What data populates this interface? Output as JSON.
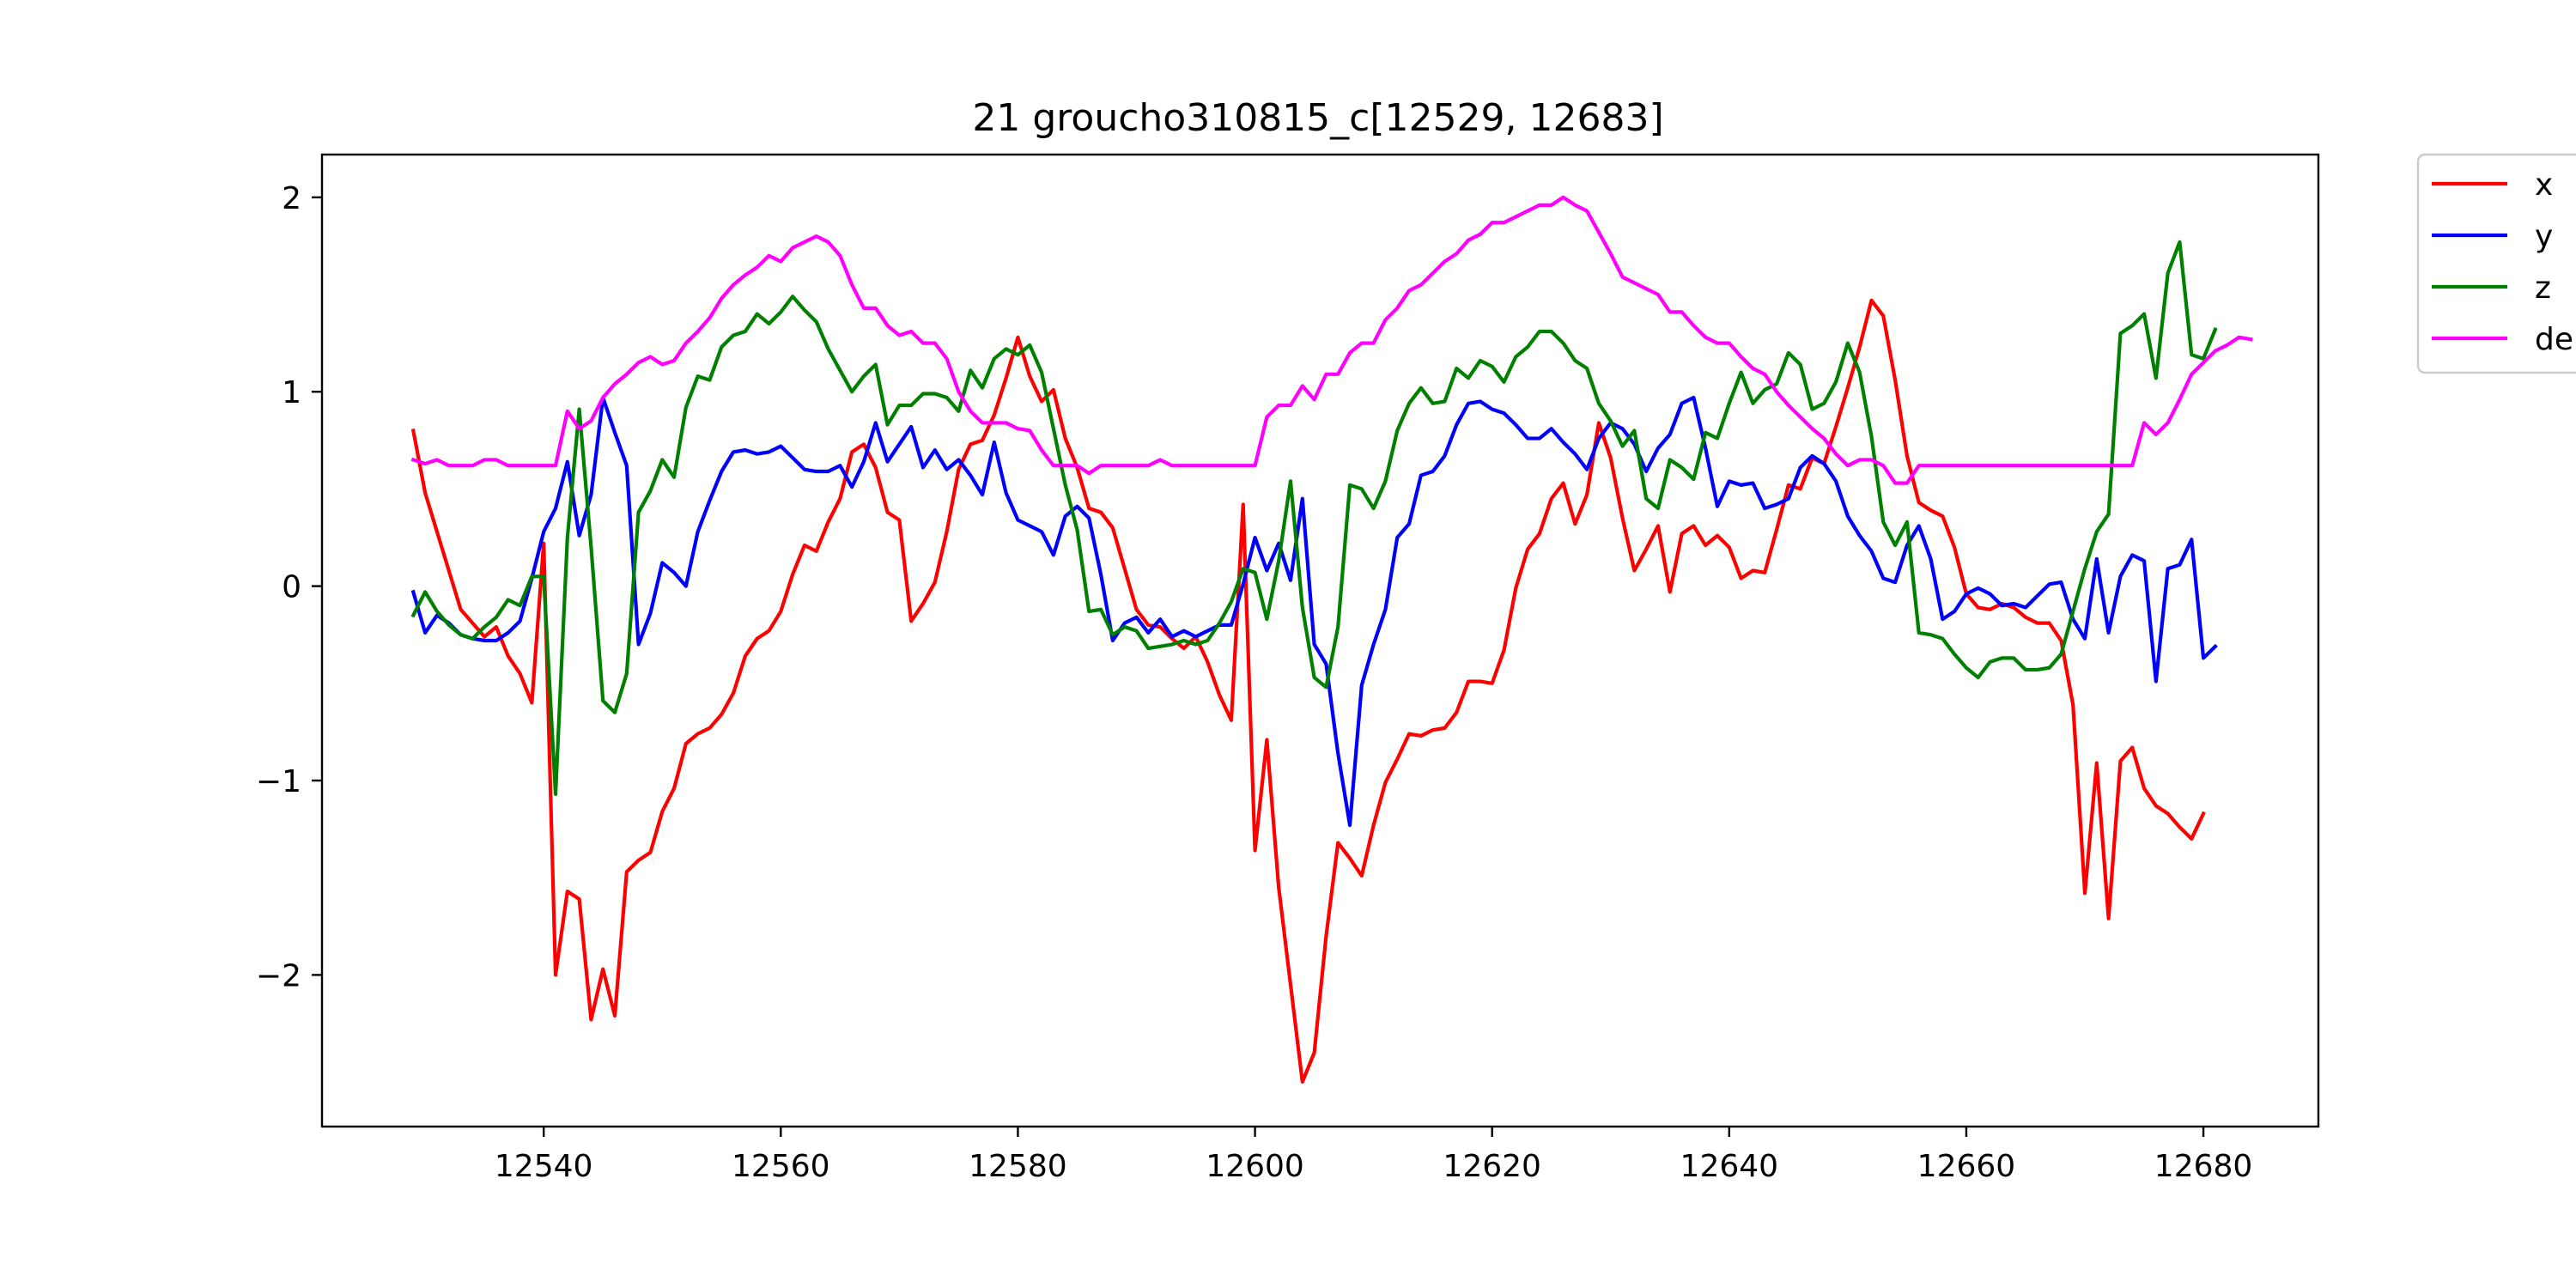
{
  "chart_data": {
    "type": "line",
    "title": "21 groucho310815_c[12529, 12683]",
    "xlabel": "",
    "ylabel": "",
    "xlim": [
      12521.3,
      12689.7
    ],
    "ylim": [
      -2.78,
      2.22
    ],
    "x_ticks": [
      12540,
      12560,
      12580,
      12600,
      12620,
      12640,
      12660,
      12680
    ],
    "y_ticks": [
      -2,
      -1,
      0,
      1,
      2
    ],
    "x_tick_labels": [
      "12540",
      "12560",
      "12580",
      "12600",
      "12620",
      "12640",
      "12660",
      "12680"
    ],
    "y_tick_labels": [
      "−2",
      "−1",
      "0",
      "1",
      "2"
    ],
    "grid": false,
    "legend_position": "outside-top-right",
    "x_start": 12529,
    "series": [
      {
        "name": "x",
        "color": "#ff0000",
        "values": [
          0.8,
          0.48,
          0.28,
          0.08,
          -0.12,
          -0.19,
          -0.26,
          -0.21,
          -0.36,
          -0.45,
          -0.6,
          0.22,
          -2.0,
          -1.57,
          -1.61,
          -2.23,
          -1.97,
          -2.21,
          -1.47,
          -1.41,
          -1.37,
          -1.16,
          -1.04,
          -0.81,
          -0.76,
          -0.73,
          -0.66,
          -0.55,
          -0.36,
          -0.27,
          -0.23,
          -0.13,
          0.06,
          0.21,
          0.18,
          0.33,
          0.45,
          0.69,
          0.73,
          0.61,
          0.38,
          0.34,
          -0.18,
          -0.09,
          0.02,
          0.28,
          0.6,
          0.73,
          0.75,
          0.88,
          1.07,
          1.28,
          1.08,
          0.95,
          1.01,
          0.76,
          0.61,
          0.4,
          0.38,
          0.3,
          0.09,
          -0.12,
          -0.2,
          -0.21,
          -0.27,
          -0.32,
          -0.26,
          -0.39,
          -0.56,
          -0.69,
          0.42,
          -1.36,
          -0.79,
          -1.55,
          -2.05,
          -2.55,
          -2.4,
          -1.8,
          -1.32,
          -1.4,
          -1.49,
          -1.23,
          -1.01,
          -0.89,
          -0.76,
          -0.77,
          -0.74,
          -0.73,
          -0.65,
          -0.49,
          -0.49,
          -0.5,
          -0.33,
          -0.01,
          0.19,
          0.27,
          0.45,
          0.53,
          0.32,
          0.47,
          0.84,
          0.66,
          0.35,
          0.08,
          0.19,
          0.31,
          -0.03,
          0.27,
          0.31,
          0.21,
          0.26,
          0.2,
          0.04,
          0.08,
          0.07,
          0.29,
          0.52,
          0.5,
          0.66,
          0.63,
          0.82,
          1.02,
          1.23,
          1.47,
          1.39,
          1.06,
          0.67,
          0.43,
          0.39,
          0.36,
          0.2,
          -0.04,
          -0.11,
          -0.12,
          -0.09,
          -0.11,
          -0.16,
          -0.19,
          -0.19,
          -0.28,
          -0.61,
          -1.58,
          -0.91,
          -1.71,
          -0.9,
          -0.83,
          -1.04,
          -1.13,
          -1.17,
          -1.24,
          -1.3,
          -1.17
        ]
      },
      {
        "name": "y",
        "color": "#0000ff",
        "values": [
          -0.03,
          -0.24,
          -0.15,
          -0.19,
          -0.25,
          -0.27,
          -0.28,
          -0.28,
          -0.24,
          -0.18,
          0.04,
          0.28,
          0.4,
          0.64,
          0.26,
          0.47,
          0.97,
          0.79,
          0.62,
          -0.3,
          -0.14,
          0.12,
          0.07,
          0.0,
          0.28,
          0.44,
          0.59,
          0.69,
          0.7,
          0.68,
          0.69,
          0.72,
          0.66,
          0.6,
          0.59,
          0.59,
          0.62,
          0.51,
          0.64,
          0.84,
          0.64,
          0.73,
          0.82,
          0.61,
          0.7,
          0.6,
          0.65,
          0.57,
          0.47,
          0.74,
          0.48,
          0.34,
          0.31,
          0.28,
          0.16,
          0.36,
          0.41,
          0.35,
          0.06,
          -0.28,
          -0.19,
          -0.16,
          -0.24,
          -0.17,
          -0.26,
          -0.23,
          -0.26,
          -0.23,
          -0.2,
          -0.2,
          0.01,
          0.25,
          0.08,
          0.22,
          0.03,
          0.45,
          -0.3,
          -0.4,
          -0.86,
          -1.23,
          -0.51,
          -0.3,
          -0.12,
          0.25,
          0.32,
          0.57,
          0.59,
          0.67,
          0.83,
          0.94,
          0.95,
          0.91,
          0.89,
          0.83,
          0.76,
          0.76,
          0.81,
          0.74,
          0.68,
          0.6,
          0.76,
          0.84,
          0.81,
          0.73,
          0.59,
          0.71,
          0.78,
          0.94,
          0.97,
          0.71,
          0.41,
          0.54,
          0.52,
          0.53,
          0.4,
          0.42,
          0.45,
          0.61,
          0.67,
          0.63,
          0.54,
          0.36,
          0.26,
          0.18,
          0.04,
          0.02,
          0.21,
          0.31,
          0.14,
          -0.17,
          -0.13,
          -0.04,
          -0.01,
          -0.04,
          -0.1,
          -0.09,
          -0.11,
          -0.05,
          0.01,
          0.02,
          -0.17,
          -0.27,
          0.14,
          -0.24,
          0.05,
          0.16,
          0.13,
          -0.49,
          0.09,
          0.11,
          0.24,
          -0.37,
          -0.31
        ]
      },
      {
        "name": "z",
        "color": "#008000",
        "values": [
          -0.15,
          -0.03,
          -0.13,
          -0.2,
          -0.25,
          -0.27,
          -0.21,
          -0.16,
          -0.07,
          -0.1,
          0.05,
          0.05,
          -1.07,
          0.25,
          0.91,
          0.2,
          -0.59,
          -0.65,
          -0.45,
          0.38,
          0.49,
          0.65,
          0.56,
          0.92,
          1.08,
          1.06,
          1.23,
          1.29,
          1.31,
          1.4,
          1.35,
          1.41,
          1.49,
          1.42,
          1.36,
          1.22,
          1.11,
          1.0,
          1.08,
          1.14,
          0.83,
          0.93,
          0.93,
          0.99,
          0.99,
          0.97,
          0.9,
          1.11,
          1.02,
          1.17,
          1.22,
          1.19,
          1.24,
          1.1,
          0.81,
          0.52,
          0.29,
          -0.13,
          -0.12,
          -0.25,
          -0.21,
          -0.23,
          -0.32,
          -0.31,
          -0.3,
          -0.28,
          -0.3,
          -0.28,
          -0.19,
          -0.08,
          0.09,
          0.07,
          -0.17,
          0.13,
          0.54,
          -0.11,
          -0.47,
          -0.52,
          -0.21,
          0.52,
          0.5,
          0.4,
          0.54,
          0.8,
          0.94,
          1.02,
          0.94,
          0.95,
          1.12,
          1.07,
          1.16,
          1.13,
          1.05,
          1.18,
          1.23,
          1.31,
          1.31,
          1.25,
          1.16,
          1.12,
          0.94,
          0.85,
          0.72,
          0.8,
          0.45,
          0.4,
          0.65,
          0.61,
          0.55,
          0.79,
          0.76,
          0.94,
          1.1,
          0.94,
          1.01,
          1.04,
          1.2,
          1.14,
          0.91,
          0.94,
          1.05,
          1.25,
          1.1,
          0.77,
          0.33,
          0.21,
          0.33,
          -0.24,
          -0.25,
          -0.27,
          -0.35,
          -0.42,
          -0.47,
          -0.39,
          -0.37,
          -0.37,
          -0.43,
          -0.43,
          -0.42,
          -0.35,
          -0.13,
          0.09,
          0.28,
          0.37,
          1.3,
          1.34,
          1.4,
          1.07,
          1.61,
          1.77,
          1.19,
          1.17,
          1.32
        ]
      },
      {
        "name": "de",
        "color": "#ff00ff",
        "values": [
          0.65,
          0.63,
          0.65,
          0.62,
          0.62,
          0.62,
          0.65,
          0.65,
          0.62,
          0.62,
          0.62,
          0.62,
          0.62,
          0.9,
          0.81,
          0.85,
          0.97,
          1.04,
          1.09,
          1.15,
          1.18,
          1.14,
          1.16,
          1.25,
          1.31,
          1.38,
          1.48,
          1.55,
          1.6,
          1.64,
          1.7,
          1.67,
          1.74,
          1.77,
          1.8,
          1.77,
          1.7,
          1.55,
          1.43,
          1.43,
          1.34,
          1.29,
          1.31,
          1.25,
          1.25,
          1.17,
          1.0,
          0.9,
          0.84,
          0.84,
          0.84,
          0.81,
          0.8,
          0.7,
          0.62,
          0.62,
          0.62,
          0.58,
          0.62,
          0.62,
          0.62,
          0.62,
          0.62,
          0.65,
          0.62,
          0.62,
          0.62,
          0.62,
          0.62,
          0.62,
          0.62,
          0.62,
          0.87,
          0.93,
          0.93,
          1.03,
          0.96,
          1.09,
          1.09,
          1.2,
          1.25,
          1.25,
          1.37,
          1.43,
          1.52,
          1.55,
          1.61,
          1.67,
          1.71,
          1.78,
          1.81,
          1.87,
          1.87,
          1.9,
          1.93,
          1.96,
          1.96,
          2.0,
          1.96,
          1.93,
          1.82,
          1.71,
          1.59,
          1.56,
          1.53,
          1.5,
          1.41,
          1.41,
          1.34,
          1.28,
          1.25,
          1.25,
          1.18,
          1.12,
          1.09,
          1.0,
          0.93,
          0.87,
          0.81,
          0.76,
          0.68,
          0.62,
          0.65,
          0.65,
          0.62,
          0.53,
          0.53,
          0.62,
          0.62,
          0.62,
          0.62,
          0.62,
          0.62,
          0.62,
          0.62,
          0.62,
          0.62,
          0.62,
          0.62,
          0.62,
          0.62,
          0.62,
          0.62,
          0.62,
          0.62,
          0.62,
          0.84,
          0.78,
          0.84,
          0.96,
          1.09,
          1.15,
          1.21,
          1.24,
          1.28,
          1.27
        ]
      }
    ]
  }
}
